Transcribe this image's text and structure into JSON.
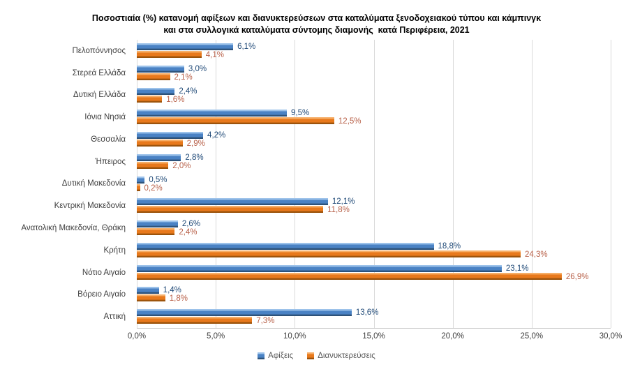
{
  "chart_data": {
    "type": "bar",
    "orientation": "horizontal",
    "title_line1": "Ποσοστιαία (%) κατανομή αφίξεων και διανυκτερεύσεων στα καταλύματα ξενοδοχειακού τύπου και κάμπινγκ",
    "title_line2": "και στα συλλογικά καταλύματα σύντομης διαμονής  κατά Περιφέρεια, 2021",
    "categories": [
      "Πελοπόννησος",
      "Στερεά Ελλάδα",
      "Δυτική Ελλάδα",
      "Ιόνια Νησιά",
      "Θεσσαλία",
      "Ήπειρος",
      "Δυτική Μακεδονία",
      "Κεντρική Μακεδονία",
      "Ανατολική Μακεδονία, Θράκη",
      "Κρήτη",
      "Νότιο Αιγαίο",
      "Βόρειο Αιγαίο",
      "Αττική"
    ],
    "series": [
      {
        "name": "Αφίξεις",
        "color": "#4a82c4",
        "color_light": "#9cc2ea",
        "color_dark": "#2d5178",
        "label_color": "#1f4977",
        "values": [
          6.1,
          3.0,
          2.4,
          9.5,
          4.2,
          2.8,
          0.5,
          12.1,
          2.6,
          18.8,
          23.1,
          1.4,
          13.6
        ],
        "labels": [
          "6,1%",
          "3,0%",
          "2,4%",
          "9,5%",
          "4,2%",
          "2,8%",
          "0,5%",
          "12,1%",
          "2,6%",
          "18,8%",
          "23,1%",
          "1,4%",
          "13,6%"
        ]
      },
      {
        "name": "Διανυκτερεύσεις",
        "color": "#e8791c",
        "color_light": "#f6ae67",
        "color_dark": "#9a520b",
        "label_color": "#b86048",
        "values": [
          4.1,
          2.1,
          1.6,
          12.5,
          2.9,
          2.0,
          0.2,
          11.8,
          2.4,
          24.3,
          26.9,
          1.8,
          7.3
        ],
        "labels": [
          "4,1%",
          "2,1%",
          "1,6%",
          "12,5%",
          "2,9%",
          "2,0%",
          "0,2%",
          "11,8%",
          "2,4%",
          "24,3%",
          "26,9%",
          "1,8%",
          "7,3%"
        ]
      }
    ],
    "x_axis": {
      "min": 0,
      "max": 30,
      "tick_labels": [
        "0,0%",
        "5,0%",
        "10,0%",
        "15,0%",
        "20,0%",
        "25,0%",
        "30,0%"
      ]
    },
    "grid": "vertical-on",
    "legend_position": "bottom",
    "legend": [
      "Αφίξεις",
      "Διανυκτερεύσεις"
    ]
  },
  "colors": {
    "gridline": "#d9d9d9",
    "axis_line": "#c9c9c9",
    "axis_text": "#404040",
    "legend_text": "#595959",
    "title_text": "#000000",
    "background": "#ffffff"
  }
}
